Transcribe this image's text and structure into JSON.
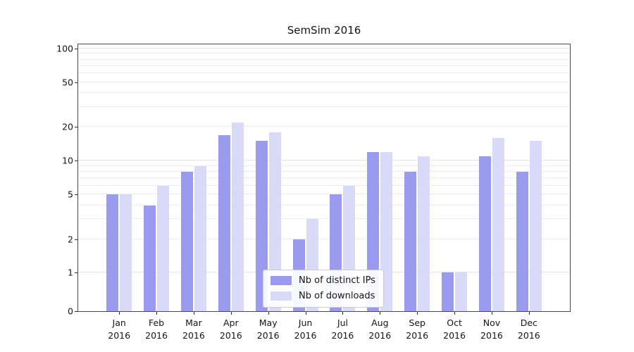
{
  "chart_data": {
    "type": "bar",
    "title": "SemSim 2016",
    "xlabel": "",
    "ylabel": "",
    "categories": [
      "Jan 2016",
      "Feb 2016",
      "Mar 2016",
      "Apr 2016",
      "May 2016",
      "Jun 2016",
      "Jul 2016",
      "Aug 2016",
      "Sep 2016",
      "Oct 2016",
      "Nov 2016",
      "Dec 2016"
    ],
    "series": [
      {
        "name": "Nb of distinct IPs",
        "color": "#9a9aee",
        "values": [
          5,
          4,
          8,
          17,
          15,
          2,
          5,
          12,
          8,
          1,
          11,
          8
        ]
      },
      {
        "name": "Nb of downloads",
        "color": "#d9d9f8",
        "values": [
          5,
          6,
          9,
          22,
          18,
          3,
          6,
          12,
          11,
          1,
          16,
          15
        ]
      }
    ],
    "y_axis": {
      "scale": "symlog",
      "range": [
        0,
        100
      ],
      "ticks": [
        0,
        1,
        2,
        5,
        10,
        20,
        50,
        100
      ],
      "major_gridlines": [
        1,
        10,
        100
      ],
      "minor_gridlines": [
        2,
        3,
        4,
        5,
        6,
        7,
        8,
        9,
        20,
        30,
        40,
        50,
        60,
        70,
        80,
        90
      ]
    },
    "grid": true,
    "legend": {
      "position": "lower center inside"
    }
  }
}
